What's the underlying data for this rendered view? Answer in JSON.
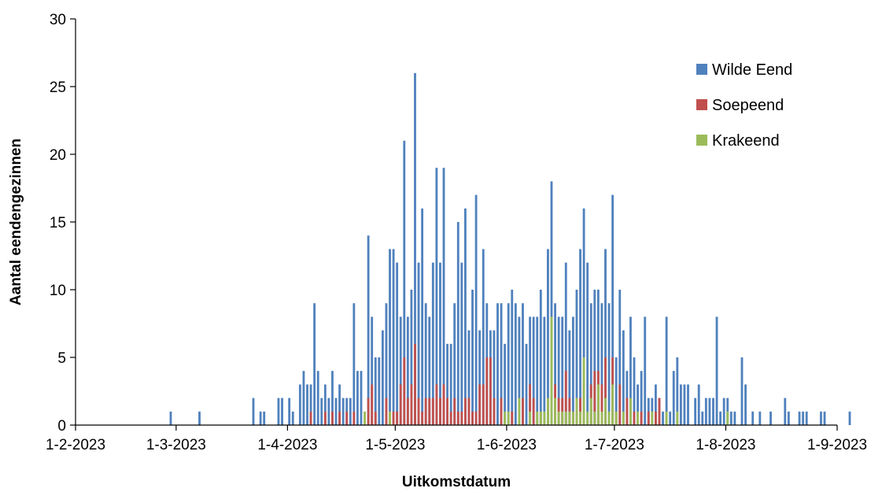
{
  "chart_data": {
    "type": "bar",
    "stacked": "overlay",
    "xlabel": "Uitkomstdatum",
    "ylabel": "Aantal eendengezinnen",
    "ylim": [
      0,
      30
    ],
    "yticks": [
      "0",
      "5",
      "10",
      "15",
      "20",
      "25",
      "30"
    ],
    "xlim": [
      "2023-02-01",
      "2023-09-01"
    ],
    "xticks": [
      "1-2-2023",
      "1-3-2023",
      "1-4-2023",
      "1-5-2023",
      "1-6-2023",
      "1-7-2023",
      "1-8-2023",
      "1-9-2023"
    ],
    "grid": false,
    "legend": "top-right",
    "colors": {
      "wilde_eend": "#4f81bd",
      "soepeend": "#c0504d",
      "krakeend": "#9bbb59",
      "axis": "#000000"
    },
    "series": [
      {
        "name": "Wilde Eend",
        "key": "wilde_eend",
        "points": [
          [
            "2023-02-27",
            1
          ],
          [
            "2023-03-07",
            1
          ],
          [
            "2023-03-22",
            2
          ],
          [
            "2023-03-24",
            1
          ],
          [
            "2023-03-25",
            1
          ],
          [
            "2023-03-29",
            2
          ],
          [
            "2023-03-30",
            2
          ],
          [
            "2023-04-01",
            2
          ],
          [
            "2023-04-02",
            1
          ],
          [
            "2023-04-04",
            3
          ],
          [
            "2023-04-05",
            4
          ],
          [
            "2023-04-06",
            3
          ],
          [
            "2023-04-07",
            3
          ],
          [
            "2023-04-08",
            9
          ],
          [
            "2023-04-09",
            4
          ],
          [
            "2023-04-10",
            2
          ],
          [
            "2023-04-11",
            3
          ],
          [
            "2023-04-12",
            2
          ],
          [
            "2023-04-13",
            4
          ],
          [
            "2023-04-14",
            2
          ],
          [
            "2023-04-15",
            3
          ],
          [
            "2023-04-16",
            2
          ],
          [
            "2023-04-17",
            2
          ],
          [
            "2023-04-18",
            2
          ],
          [
            "2023-04-19",
            9
          ],
          [
            "2023-04-20",
            4
          ],
          [
            "2023-04-21",
            4
          ],
          [
            "2023-04-23",
            14
          ],
          [
            "2023-04-24",
            8
          ],
          [
            "2023-04-25",
            5
          ],
          [
            "2023-04-26",
            5
          ],
          [
            "2023-04-27",
            7
          ],
          [
            "2023-04-28",
            9
          ],
          [
            "2023-04-29",
            13
          ],
          [
            "2023-04-30",
            13
          ],
          [
            "2023-05-01",
            12
          ],
          [
            "2023-05-02",
            8
          ],
          [
            "2023-05-03",
            21
          ],
          [
            "2023-05-04",
            8
          ],
          [
            "2023-05-05",
            10
          ],
          [
            "2023-05-06",
            26
          ],
          [
            "2023-05-07",
            12
          ],
          [
            "2023-05-08",
            16
          ],
          [
            "2023-05-09",
            9
          ],
          [
            "2023-05-10",
            8
          ],
          [
            "2023-05-11",
            12
          ],
          [
            "2023-05-12",
            19
          ],
          [
            "2023-05-13",
            12
          ],
          [
            "2023-05-14",
            19
          ],
          [
            "2023-05-15",
            6
          ],
          [
            "2023-05-16",
            6
          ],
          [
            "2023-05-17",
            9
          ],
          [
            "2023-05-18",
            15
          ],
          [
            "2023-05-19",
            12
          ],
          [
            "2023-05-20",
            16
          ],
          [
            "2023-05-21",
            7
          ],
          [
            "2023-05-22",
            10
          ],
          [
            "2023-05-23",
            17
          ],
          [
            "2023-05-24",
            7
          ],
          [
            "2023-05-25",
            13
          ],
          [
            "2023-05-26",
            9
          ],
          [
            "2023-05-27",
            7
          ],
          [
            "2023-05-28",
            7
          ],
          [
            "2023-05-29",
            9
          ],
          [
            "2023-05-30",
            9
          ],
          [
            "2023-05-31",
            6
          ],
          [
            "2023-06-01",
            9
          ],
          [
            "2023-06-02",
            10
          ],
          [
            "2023-06-03",
            9
          ],
          [
            "2023-06-04",
            8
          ],
          [
            "2023-06-05",
            9
          ],
          [
            "2023-06-06",
            6
          ],
          [
            "2023-06-07",
            8
          ],
          [
            "2023-06-08",
            8
          ],
          [
            "2023-06-09",
            8
          ],
          [
            "2023-06-10",
            10
          ],
          [
            "2023-06-11",
            8
          ],
          [
            "2023-06-12",
            13
          ],
          [
            "2023-06-13",
            18
          ],
          [
            "2023-06-14",
            9
          ],
          [
            "2023-06-15",
            8
          ],
          [
            "2023-06-16",
            8
          ],
          [
            "2023-06-17",
            12
          ],
          [
            "2023-06-18",
            7
          ],
          [
            "2023-06-19",
            8
          ],
          [
            "2023-06-20",
            10
          ],
          [
            "2023-06-21",
            13
          ],
          [
            "2023-06-22",
            16
          ],
          [
            "2023-06-23",
            12
          ],
          [
            "2023-06-24",
            9
          ],
          [
            "2023-06-25",
            10
          ],
          [
            "2023-06-26",
            10
          ],
          [
            "2023-06-27",
            9
          ],
          [
            "2023-06-28",
            13
          ],
          [
            "2023-06-29",
            9
          ],
          [
            "2023-06-30",
            17
          ],
          [
            "2023-07-01",
            5
          ],
          [
            "2023-07-02",
            10
          ],
          [
            "2023-07-03",
            7
          ],
          [
            "2023-07-04",
            4
          ],
          [
            "2023-07-05",
            8
          ],
          [
            "2023-07-06",
            5
          ],
          [
            "2023-07-07",
            3
          ],
          [
            "2023-07-08",
            4
          ],
          [
            "2023-07-09",
            8
          ],
          [
            "2023-07-10",
            2
          ],
          [
            "2023-07-11",
            2
          ],
          [
            "2023-07-12",
            3
          ],
          [
            "2023-07-13",
            2
          ],
          [
            "2023-07-14",
            1
          ],
          [
            "2023-07-15",
            8
          ],
          [
            "2023-07-16",
            1
          ],
          [
            "2023-07-17",
            4
          ],
          [
            "2023-07-18",
            5
          ],
          [
            "2023-07-19",
            3
          ],
          [
            "2023-07-20",
            3
          ],
          [
            "2023-07-21",
            3
          ],
          [
            "2023-07-23",
            2
          ],
          [
            "2023-07-24",
            3
          ],
          [
            "2023-07-25",
            1
          ],
          [
            "2023-07-26",
            2
          ],
          [
            "2023-07-27",
            2
          ],
          [
            "2023-07-28",
            2
          ],
          [
            "2023-07-29",
            8
          ],
          [
            "2023-07-30",
            1
          ],
          [
            "2023-07-31",
            2
          ],
          [
            "2023-08-01",
            2
          ],
          [
            "2023-08-02",
            1
          ],
          [
            "2023-08-03",
            1
          ],
          [
            "2023-08-05",
            5
          ],
          [
            "2023-08-06",
            3
          ],
          [
            "2023-08-08",
            1
          ],
          [
            "2023-08-10",
            1
          ],
          [
            "2023-08-13",
            1
          ],
          [
            "2023-08-17",
            2
          ],
          [
            "2023-08-18",
            1
          ],
          [
            "2023-08-21",
            1
          ],
          [
            "2023-08-22",
            1
          ],
          [
            "2023-08-23",
            1
          ],
          [
            "2023-08-27",
            1
          ],
          [
            "2023-08-28",
            1
          ],
          [
            "2023-09-04",
            1
          ]
        ]
      },
      {
        "name": "Soepeend",
        "key": "soepeend",
        "points": [
          [
            "2023-04-07",
            1
          ],
          [
            "2023-04-11",
            1
          ],
          [
            "2023-04-13",
            1
          ],
          [
            "2023-04-15",
            1
          ],
          [
            "2023-04-17",
            1
          ],
          [
            "2023-04-19",
            1
          ],
          [
            "2023-04-23",
            2
          ],
          [
            "2023-04-24",
            3
          ],
          [
            "2023-04-25",
            1
          ],
          [
            "2023-04-28",
            2
          ],
          [
            "2023-04-29",
            1
          ],
          [
            "2023-04-30",
            1
          ],
          [
            "2023-05-01",
            1
          ],
          [
            "2023-05-02",
            3
          ],
          [
            "2023-05-03",
            5
          ],
          [
            "2023-05-04",
            2
          ],
          [
            "2023-05-05",
            3
          ],
          [
            "2023-05-06",
            6
          ],
          [
            "2023-05-07",
            2
          ],
          [
            "2023-05-08",
            1
          ],
          [
            "2023-05-09",
            2
          ],
          [
            "2023-05-10",
            2
          ],
          [
            "2023-05-11",
            2
          ],
          [
            "2023-05-12",
            3
          ],
          [
            "2023-05-13",
            2
          ],
          [
            "2023-05-14",
            3
          ],
          [
            "2023-05-15",
            2
          ],
          [
            "2023-05-16",
            1
          ],
          [
            "2023-05-17",
            2
          ],
          [
            "2023-05-18",
            1
          ],
          [
            "2023-05-19",
            1
          ],
          [
            "2023-05-20",
            2
          ],
          [
            "2023-05-21",
            2
          ],
          [
            "2023-05-22",
            1
          ],
          [
            "2023-05-23",
            1
          ],
          [
            "2023-05-24",
            3
          ],
          [
            "2023-05-25",
            3
          ],
          [
            "2023-05-26",
            5
          ],
          [
            "2023-05-27",
            5
          ],
          [
            "2023-05-28",
            2
          ],
          [
            "2023-05-30",
            2
          ],
          [
            "2023-06-02",
            1
          ],
          [
            "2023-06-05",
            2
          ],
          [
            "2023-06-07",
            3
          ],
          [
            "2023-06-08",
            2
          ],
          [
            "2023-06-10",
            1
          ],
          [
            "2023-06-12",
            2
          ],
          [
            "2023-06-14",
            3
          ],
          [
            "2023-06-15",
            2
          ],
          [
            "2023-06-16",
            2
          ],
          [
            "2023-06-17",
            4
          ],
          [
            "2023-06-18",
            2
          ],
          [
            "2023-06-19",
            1
          ],
          [
            "2023-06-20",
            2
          ],
          [
            "2023-06-21",
            2
          ],
          [
            "2023-06-22",
            3
          ],
          [
            "2023-06-24",
            3
          ],
          [
            "2023-06-25",
            4
          ],
          [
            "2023-06-26",
            4
          ],
          [
            "2023-06-27",
            3
          ],
          [
            "2023-06-28",
            5
          ],
          [
            "2023-06-30",
            5
          ],
          [
            "2023-07-01",
            1
          ],
          [
            "2023-07-02",
            3
          ],
          [
            "2023-07-04",
            2
          ],
          [
            "2023-07-06",
            1
          ],
          [
            "2023-07-08",
            1
          ],
          [
            "2023-07-10",
            1
          ],
          [
            "2023-07-12",
            1
          ],
          [
            "2023-07-13",
            2
          ]
        ]
      },
      {
        "name": "Krakeend",
        "key": "krakeend",
        "points": [
          [
            "2023-04-22",
            1
          ],
          [
            "2023-04-29",
            1
          ],
          [
            "2023-05-31",
            1
          ],
          [
            "2023-06-01",
            1
          ],
          [
            "2023-06-04",
            2
          ],
          [
            "2023-06-07",
            1
          ],
          [
            "2023-06-09",
            1
          ],
          [
            "2023-06-10",
            1
          ],
          [
            "2023-06-11",
            1
          ],
          [
            "2023-06-12",
            2
          ],
          [
            "2023-06-13",
            8
          ],
          [
            "2023-06-14",
            2
          ],
          [
            "2023-06-15",
            1
          ],
          [
            "2023-06-16",
            1
          ],
          [
            "2023-06-17",
            1
          ],
          [
            "2023-06-18",
            1
          ],
          [
            "2023-06-19",
            1
          ],
          [
            "2023-06-20",
            2
          ],
          [
            "2023-06-21",
            1
          ],
          [
            "2023-06-22",
            5
          ],
          [
            "2023-06-23",
            1
          ],
          [
            "2023-06-24",
            2
          ],
          [
            "2023-06-25",
            1
          ],
          [
            "2023-06-26",
            3
          ],
          [
            "2023-06-27",
            1
          ],
          [
            "2023-06-28",
            2
          ],
          [
            "2023-06-29",
            1
          ],
          [
            "2023-06-30",
            3
          ],
          [
            "2023-07-01",
            1
          ],
          [
            "2023-07-03",
            1
          ],
          [
            "2023-07-05",
            2
          ],
          [
            "2023-07-07",
            1
          ],
          [
            "2023-07-11",
            1
          ],
          [
            "2023-07-15",
            1
          ],
          [
            "2023-07-18",
            1
          ],
          [
            "2023-08-01",
            1
          ]
        ]
      }
    ]
  }
}
